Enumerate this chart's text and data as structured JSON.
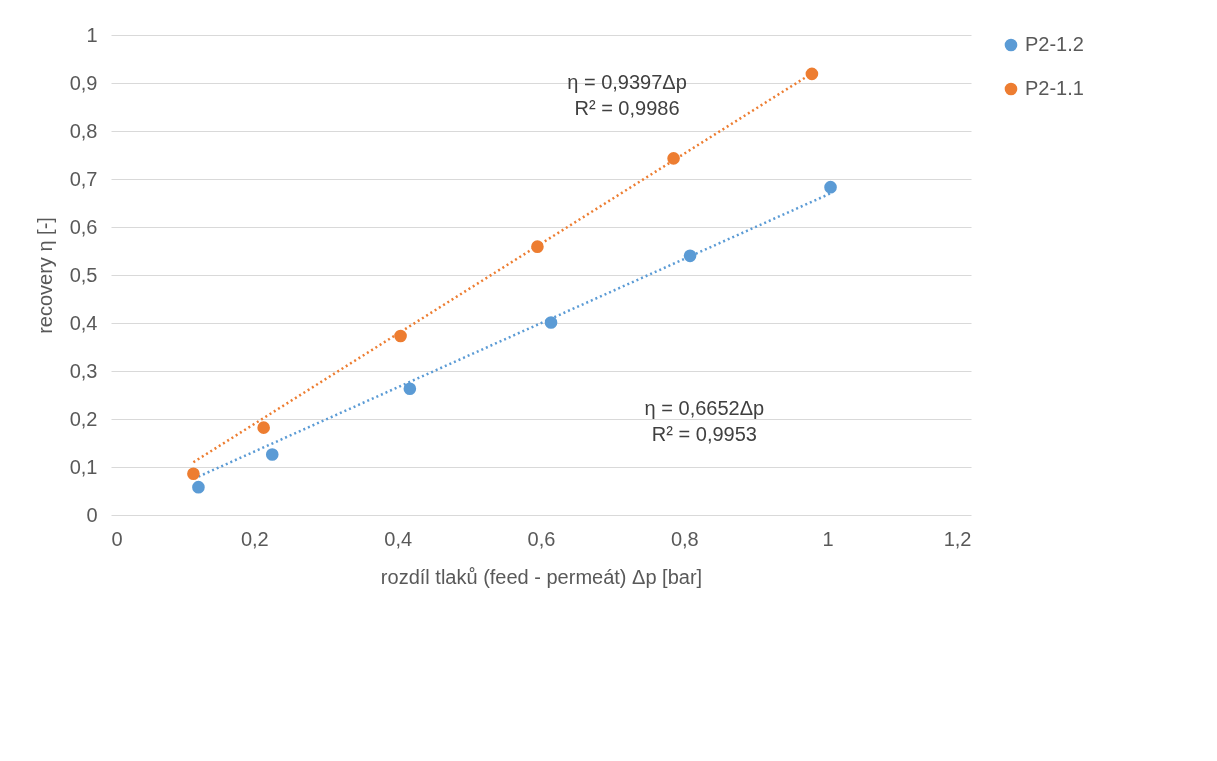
{
  "chart_data": {
    "type": "scatter",
    "xlabel": "rozdíl tlaků (feed - permeát) Δp [bar]",
    "ylabel": "recovery η [-]",
    "xlim": [
      0,
      1.2
    ],
    "xticks": [
      0,
      {
        "value": 0.2,
        "label": "0,2"
      },
      {
        "value": 0.4,
        "label": "0,4"
      },
      {
        "value": 0.6,
        "label": "0,6"
      },
      {
        "value": 0.8,
        "label": "0,8"
      },
      1,
      {
        "value": 1.2,
        "label": "1,2"
      }
    ],
    "ylim": [
      0,
      1
    ],
    "yticks": [
      0,
      {
        "value": 0.1,
        "label": "0,1"
      },
      {
        "value": 0.2,
        "label": "0,2"
      },
      {
        "value": 0.3,
        "label": "0,3"
      },
      {
        "value": 0.4,
        "label": "0,4"
      },
      {
        "value": 0.5,
        "label": "0,5"
      },
      {
        "value": 0.6,
        "label": "0,6"
      },
      {
        "value": 0.7,
        "label": "0,7"
      },
      {
        "value": 0.8,
        "label": "0,8"
      },
      {
        "value": 0.9,
        "label": "0,9"
      },
      1
    ],
    "grid": "y",
    "legend": "right",
    "marker": "circle",
    "series": [
      {
        "name": "P2-1.2",
        "color": "#5b9bd5",
        "x": [
          0.122,
          0.225,
          0.417,
          0.614,
          0.808,
          1.004
        ],
        "values": [
          0.058,
          0.126,
          0.263,
          0.401,
          0.54,
          0.683
        ]
      },
      {
        "name": "P2-1.1",
        "color": "#ed7d31",
        "x": [
          0.115,
          0.213,
          0.404,
          0.595,
          0.785,
          0.978
        ],
        "values": [
          0.086,
          0.182,
          0.373,
          0.559,
          0.743,
          0.919
        ]
      },
      {
        "type": "line",
        "color": "#5b9bd5",
        "line_style": "dotted",
        "marker": "none",
        "x": [
          0.122,
          1.004
        ],
        "values": [
          0.08,
          0.67
        ]
      },
      {
        "type": "line",
        "color": "#ed7d31",
        "line_style": "dotted",
        "marker": "none",
        "x": [
          0.115,
          0.978
        ],
        "values": [
          0.11,
          0.92
        ]
      }
    ],
    "annotations": [
      "η = 0,9397Δp\nR² = 0,9986",
      "η = 0,6652Δp\nR² = 0,9953"
    ]
  }
}
